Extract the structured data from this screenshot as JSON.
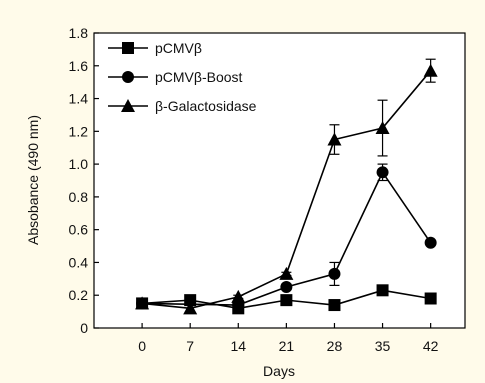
{
  "chart_data": {
    "type": "line",
    "title": "",
    "xlabel": "Days",
    "ylabel": "Absobance (490 nm)",
    "x": [
      0,
      7,
      14,
      21,
      28,
      35,
      42
    ],
    "x_tick_labels": [
      "0",
      "7",
      "14",
      "21",
      "28",
      "35",
      "42"
    ],
    "xlim": [
      -7,
      47
    ],
    "ylim": [
      0,
      1.8
    ],
    "y_ticks": [
      0,
      0.2,
      0.4,
      0.6,
      0.8,
      1.0,
      1.2,
      1.4,
      1.6,
      1.8
    ],
    "y_tick_labels": [
      "0",
      "0.2",
      "0.4",
      "0.6",
      "0.8",
      "1.0",
      "1.2",
      "1.4",
      "1.6",
      "1.8"
    ],
    "grid": false,
    "legend_position": "top-left",
    "colors": {
      "series": "#000000",
      "background": "#fffbea"
    },
    "series": [
      {
        "name": "pCMVβ",
        "marker": "square",
        "values": [
          0.15,
          0.17,
          0.12,
          0.17,
          0.14,
          0.23,
          0.18
        ],
        "errors": [
          0,
          0.02,
          0.01,
          0.01,
          0.01,
          0.03,
          0.01
        ]
      },
      {
        "name": "pCMVβ-Boost",
        "marker": "circle",
        "values": [
          0.15,
          null,
          0.14,
          0.25,
          0.33,
          0.95,
          0.52
        ],
        "errors": [
          0,
          0,
          0.01,
          0.01,
          0.07,
          0.05,
          0
        ]
      },
      {
        "name": "β-Galactosidase",
        "marker": "triangle",
        "values": [
          0.15,
          0.12,
          0.19,
          0.33,
          1.15,
          1.22,
          1.57
        ],
        "errors": [
          0,
          0,
          0.01,
          0.01,
          0.09,
          0.17,
          0.07
        ]
      }
    ]
  }
}
